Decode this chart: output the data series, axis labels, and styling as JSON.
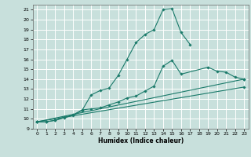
{
  "title": "",
  "xlabel": "Humidex (Indice chaleur)",
  "bg_color": "#c8e0dc",
  "grid_color": "#ffffff",
  "line_color": "#1a7a6a",
  "xlim": [
    -0.5,
    23.5
  ],
  "ylim": [
    9,
    21.5
  ],
  "xticks": [
    0,
    1,
    2,
    3,
    4,
    5,
    6,
    7,
    8,
    9,
    10,
    11,
    12,
    13,
    14,
    15,
    16,
    17,
    18,
    19,
    20,
    21,
    22,
    23
  ],
  "yticks": [
    9,
    10,
    11,
    12,
    13,
    14,
    15,
    16,
    17,
    18,
    19,
    20,
    21
  ],
  "line1_x": [
    0,
    1,
    2,
    3,
    4,
    5,
    6,
    7,
    8,
    9,
    10,
    11,
    12,
    13,
    14,
    15,
    16,
    17
  ],
  "line1_y": [
    9.7,
    9.7,
    9.85,
    10.1,
    10.35,
    10.85,
    12.4,
    12.85,
    13.1,
    14.35,
    16.0,
    17.7,
    18.5,
    19.0,
    21.0,
    21.1,
    18.7,
    17.5
  ],
  "line2_x": [
    0,
    1,
    2,
    3,
    4,
    5,
    6,
    7,
    8,
    9,
    10,
    11,
    12,
    13,
    14,
    15,
    16,
    19,
    20,
    21,
    22,
    23
  ],
  "line2_y": [
    9.7,
    9.7,
    9.85,
    10.15,
    10.4,
    10.9,
    11.0,
    11.1,
    11.4,
    11.7,
    12.1,
    12.3,
    12.8,
    13.3,
    15.3,
    15.9,
    14.5,
    15.2,
    14.8,
    14.7,
    14.2,
    14.0
  ],
  "line3_x": [
    0,
    23
  ],
  "line3_y": [
    9.7,
    14.0
  ],
  "line4_x": [
    0,
    23
  ],
  "line4_y": [
    9.7,
    13.2
  ]
}
